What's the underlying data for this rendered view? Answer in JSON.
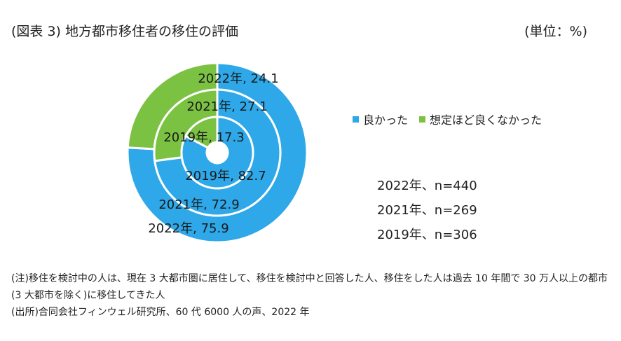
{
  "title": "(図表 3)  地方都市移住者の移住の評価",
  "unit": "(単位：%)",
  "legend": [
    {
      "label": "良かった",
      "color": "#2ea8e8"
    },
    {
      "label": "想定ほど良くなかった",
      "color": "#7cc242"
    }
  ],
  "samples": [
    "2022年、n=440",
    "2021年、n=269",
    "2019年、n=306"
  ],
  "notes": [
    "(注)移住を検討中の人は、現在 3 大都市圏に居住して、移住を検討中と回答した人、移住をした人は過去 10 年間で 30 万人以上の都市(3 大都市を除く)に移住してきた人",
    "(出所)合同会社フィンウェル研究所、60 代 6000 人の声、2022 年"
  ],
  "chart_data": {
    "type": "pie",
    "variant": "multi-ring donut",
    "categories": [
      "良かった",
      "想定ほど良くなかった"
    ],
    "colors": [
      "#2ea8e8",
      "#7cc242"
    ],
    "rings": [
      {
        "name": "2022年",
        "values": [
          75.9,
          24.1
        ],
        "labels": [
          "2022年, 75.9",
          "2022年, 24.1"
        ]
      },
      {
        "name": "2021年",
        "values": [
          72.9,
          27.1
        ],
        "labels": [
          "2021年, 72.9",
          "2021年, 27.1"
        ]
      },
      {
        "name": "2019年",
        "values": [
          82.7,
          17.3
        ],
        "labels": [
          "2019年, 82.7",
          "2019年, 17.3"
        ]
      }
    ]
  }
}
